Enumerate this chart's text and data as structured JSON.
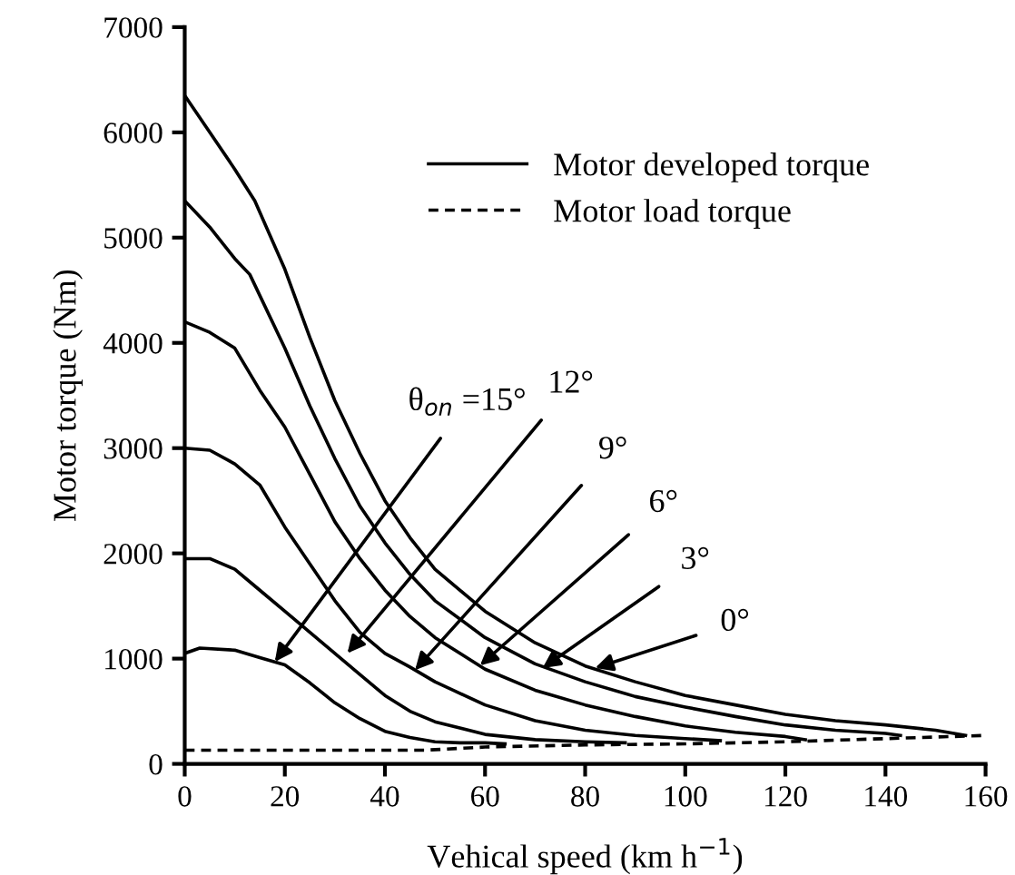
{
  "chart_data": {
    "type": "line",
    "xlabel": "Vehical speed (km h$^{−1}$)",
    "ylabel": "Motor torque (Nm)",
    "xlim": [
      0,
      160
    ],
    "ylim": [
      0,
      7000
    ],
    "xticks": [
      0,
      20,
      40,
      60,
      80,
      100,
      120,
      140,
      160
    ],
    "yticks": [
      0,
      1000,
      2000,
      3000,
      4000,
      5000,
      6000,
      7000
    ],
    "grid": false,
    "legend": "top",
    "marker": "none",
    "series": [
      {
        "name": "Motor developed torque",
        "color": "#000000",
        "line_style": "solid",
        "x": [
          0,
          5,
          10,
          14,
          20,
          25,
          30,
          35,
          40,
          45,
          50,
          60,
          70,
          80,
          90,
          100,
          110,
          120,
          130,
          140,
          150,
          156
        ],
        "values": [
          6350,
          6000,
          5650,
          5350,
          4700,
          4050,
          3450,
          2950,
          2500,
          2150,
          1850,
          1450,
          1150,
          930,
          780,
          650,
          560,
          470,
          410,
          370,
          320,
          270
        ]
      },
      {
        "color": "#000000",
        "line_style": "solid",
        "x": [
          0,
          5,
          10,
          13,
          20,
          25,
          30,
          35,
          40,
          45,
          50,
          60,
          70,
          80,
          90,
          100,
          110,
          120,
          130,
          140,
          143
        ],
        "values": [
          5350,
          5100,
          4800,
          4650,
          3950,
          3400,
          2900,
          2450,
          2100,
          1800,
          1550,
          1200,
          950,
          780,
          640,
          540,
          450,
          370,
          320,
          290,
          270
        ]
      },
      {
        "color": "#000000",
        "line_style": "solid",
        "x": [
          0,
          5,
          10,
          15,
          20,
          25,
          30,
          35,
          40,
          45,
          50,
          60,
          70,
          80,
          90,
          100,
          110,
          120,
          124
        ],
        "values": [
          4200,
          4100,
          3950,
          3550,
          3200,
          2750,
          2300,
          1950,
          1650,
          1400,
          1200,
          900,
          700,
          560,
          450,
          360,
          300,
          260,
          230
        ]
      },
      {
        "color": "#000000",
        "line_style": "solid",
        "x": [
          0,
          5,
          10,
          15,
          20,
          25,
          30,
          35,
          40,
          45,
          50,
          60,
          70,
          80,
          90,
          100,
          107
        ],
        "values": [
          3000,
          2980,
          2850,
          2650,
          2250,
          1900,
          1550,
          1250,
          1050,
          920,
          780,
          560,
          410,
          320,
          270,
          240,
          220
        ]
      },
      {
        "color": "#000000",
        "line_style": "solid",
        "x": [
          0,
          5,
          10,
          15,
          20,
          25,
          30,
          35,
          40,
          45,
          50,
          60,
          70,
          80,
          88
        ],
        "values": [
          1950,
          1950,
          1850,
          1650,
          1450,
          1250,
          1050,
          850,
          650,
          500,
          400,
          280,
          230,
          210,
          200
        ]
      },
      {
        "color": "#000000",
        "line_style": "solid",
        "x": [
          0,
          3,
          10,
          15,
          20,
          25,
          30,
          35,
          40,
          45,
          50,
          55,
          60,
          64
        ],
        "values": [
          1050,
          1100,
          1080,
          1010,
          940,
          770,
          580,
          430,
          310,
          250,
          210,
          200,
          200,
          190
        ]
      },
      {
        "name": "Motor load torque",
        "color": "#000000",
        "line_style": "dashed",
        "x": [
          0,
          48,
          60,
          80,
          100,
          120,
          140,
          160
        ],
        "values": [
          130,
          130,
          160,
          180,
          190,
          210,
          240,
          270
        ]
      }
    ],
    "annotations": [
      {
        "text": "θ$_{on}$ =15°",
        "x": 18,
        "y": 970
      },
      {
        "text": "12°",
        "x": 32.5,
        "y": 1050
      },
      {
        "text": "9°",
        "x": 46,
        "y": 890
      },
      {
        "text": "6°",
        "x": 59,
        "y": 935
      },
      {
        "text": "3°",
        "x": 71.5,
        "y": 910
      },
      {
        "text": "0°",
        "x": 82,
        "y": 910
      }
    ]
  }
}
